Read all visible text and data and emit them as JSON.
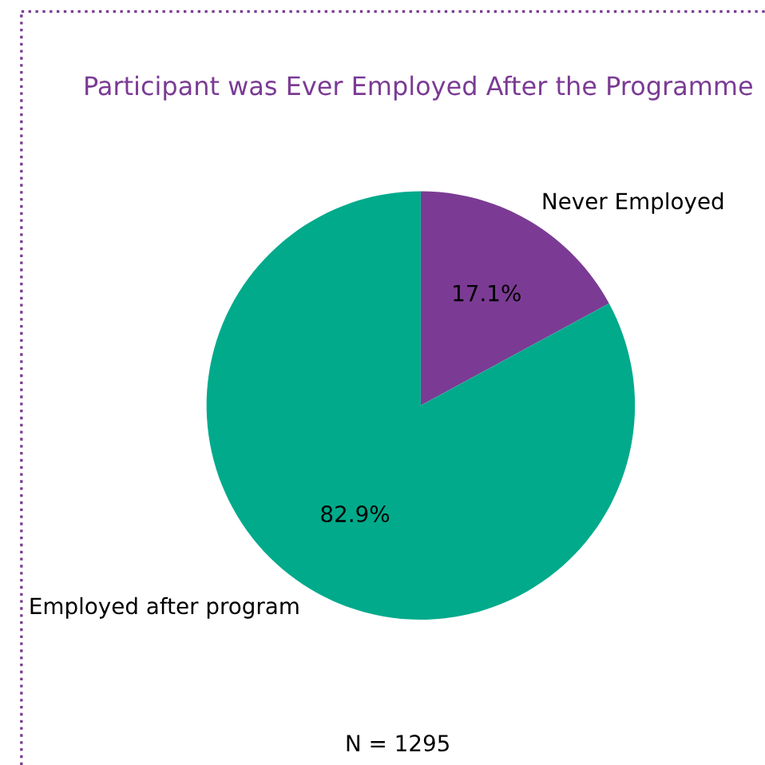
{
  "chart_data": {
    "type": "pie",
    "title": "Participant was Ever Employed After the Programme",
    "categories": [
      "Never Employed",
      "Employed after program"
    ],
    "values": [
      17.1,
      82.9
    ],
    "colors": [
      "#7b3b94",
      "#00aa8b"
    ],
    "value_labels": [
      "17.1%",
      "82.9%"
    ],
    "annotations": [
      "N = 1295"
    ]
  }
}
